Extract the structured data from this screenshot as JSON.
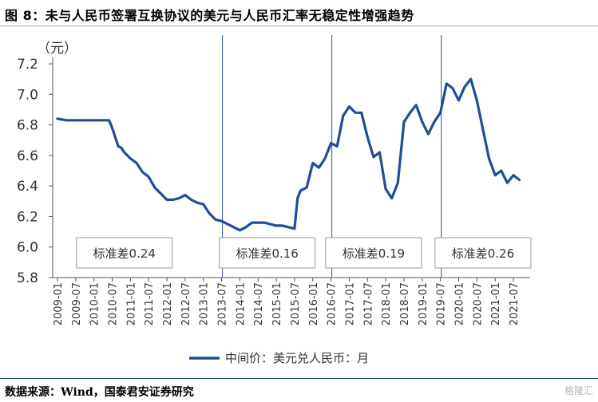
{
  "header": {
    "title": "图 8：未与人民币签署互换协议的美元与人民币汇率无稳定性增强趋势"
  },
  "footer": {
    "source": "数据来源：Wind，国泰君安证券研究",
    "watermark": "格隆汇"
  },
  "colors": {
    "line": "#1f4e96",
    "vline": "#4a6fa5",
    "axis": "#555555",
    "title_rule": "#9aa3b5",
    "footer_rule": "#1f3d7a"
  },
  "chart_data": {
    "type": "line",
    "ylabel": "（元）",
    "ylim": [
      5.8,
      7.2
    ],
    "yticks": [
      "5.8",
      "6.0",
      "6.2",
      "6.4",
      "6.6",
      "6.8",
      "7.0",
      "7.2"
    ],
    "xticks": [
      "2009-01",
      "2009-07",
      "2010-01",
      "2010-07",
      "2011-01",
      "2011-07",
      "2012-01",
      "2012-07",
      "2013-01",
      "2013-07",
      "2014-01",
      "2014-07",
      "2015-01",
      "2015-07",
      "2016-01",
      "2016-07",
      "2017-01",
      "2017-07",
      "2018-01",
      "2018-07",
      "2019-01",
      "2019-07",
      "2020-01",
      "2020-07",
      "2021-01",
      "2021-07"
    ],
    "legend": "中间价：美元兑人民币：月",
    "vlines": [
      "2013-07",
      "2016-07",
      "2019-07"
    ],
    "annotations": [
      {
        "text": "标准差0.24",
        "anchor": "2010-11"
      },
      {
        "text": "标准差0.16",
        "anchor": "2014-10"
      },
      {
        "text": "标准差0.19",
        "anchor": "2017-09"
      },
      {
        "text": "标准差0.26",
        "anchor": "2020-09"
      }
    ],
    "series": [
      {
        "x": [
          "2009-01",
          "2009-04",
          "2009-07",
          "2009-10",
          "2010-01",
          "2010-04",
          "2010-06",
          "2010-07",
          "2010-08",
          "2010-09",
          "2010-10",
          "2010-11",
          "2011-01",
          "2011-03",
          "2011-05",
          "2011-07",
          "2011-09",
          "2011-11",
          "2012-01",
          "2012-03",
          "2012-05",
          "2012-07",
          "2012-09",
          "2012-11",
          "2013-01",
          "2013-03",
          "2013-05",
          "2013-07",
          "2013-10",
          "2014-01",
          "2014-03",
          "2014-05",
          "2014-07",
          "2014-09",
          "2014-11",
          "2015-01",
          "2015-03",
          "2015-05",
          "2015-07",
          "2015-08",
          "2015-09",
          "2015-11",
          "2016-01",
          "2016-03",
          "2016-05",
          "2016-07",
          "2016-09",
          "2016-11",
          "2017-01",
          "2017-03",
          "2017-05",
          "2017-07",
          "2017-09",
          "2017-11",
          "2018-01",
          "2018-03",
          "2018-05",
          "2018-07",
          "2018-09",
          "2018-11",
          "2019-01",
          "2019-03",
          "2019-05",
          "2019-07",
          "2019-09",
          "2019-11",
          "2020-01",
          "2020-03",
          "2020-05",
          "2020-07",
          "2020-09",
          "2020-11",
          "2021-01",
          "2021-03",
          "2021-05",
          "2021-07",
          "2021-09"
        ],
        "values": [
          6.84,
          6.83,
          6.83,
          6.83,
          6.83,
          6.83,
          6.83,
          6.78,
          6.72,
          6.66,
          6.65,
          6.62,
          6.58,
          6.55,
          6.49,
          6.46,
          6.39,
          6.35,
          6.31,
          6.31,
          6.32,
          6.34,
          6.31,
          6.29,
          6.28,
          6.22,
          6.18,
          6.17,
          6.14,
          6.11,
          6.13,
          6.16,
          6.16,
          6.16,
          6.15,
          6.14,
          6.14,
          6.13,
          6.12,
          6.32,
          6.37,
          6.39,
          6.55,
          6.52,
          6.58,
          6.68,
          6.66,
          6.86,
          6.92,
          6.88,
          6.88,
          6.72,
          6.59,
          6.62,
          6.38,
          6.32,
          6.42,
          6.82,
          6.88,
          6.93,
          6.82,
          6.74,
          6.82,
          6.88,
          7.07,
          7.04,
          6.96,
          7.05,
          7.1,
          6.96,
          6.77,
          6.58,
          6.47,
          6.5,
          6.42,
          6.47,
          6.44
        ]
      }
    ]
  }
}
